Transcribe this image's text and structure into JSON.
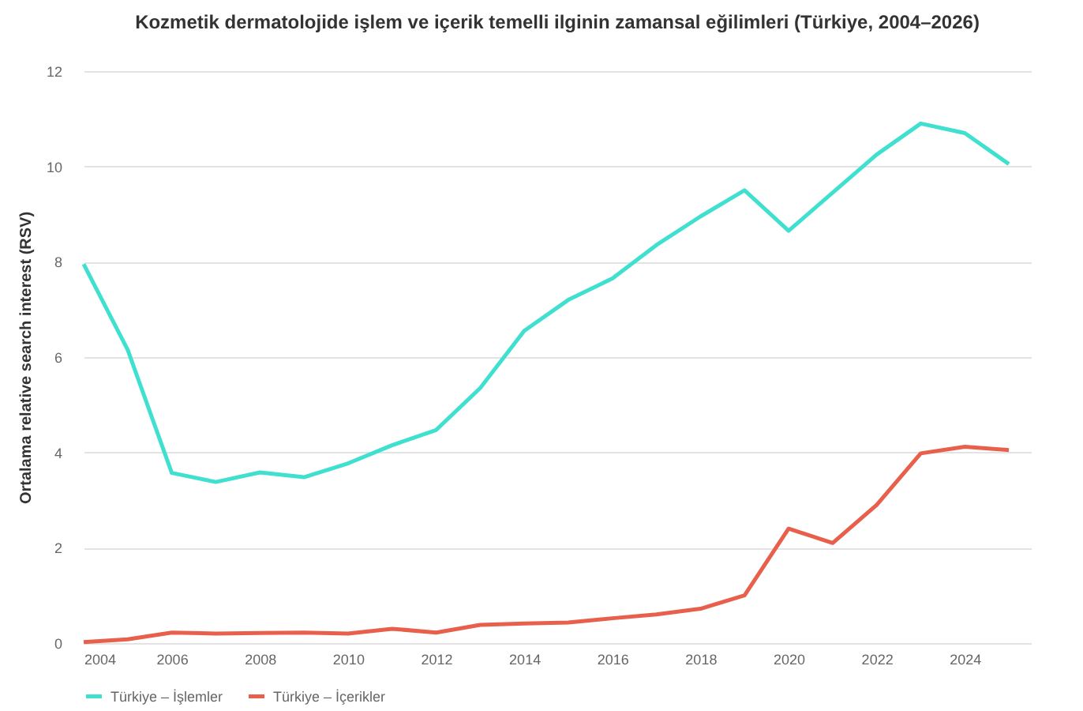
{
  "chart_data": {
    "type": "line",
    "title": "Kozmetik dermatolojide işlem ve içerik temelli ilginin zamansal eğilimleri (Türkiye, 2004–2026)",
    "ylabel": "Ortalama  relative search interest (RSV)",
    "x": [
      2004,
      2005,
      2006,
      2007,
      2008,
      2009,
      2010,
      2011,
      2012,
      2013,
      2014,
      2015,
      2016,
      2017,
      2018,
      2019,
      2020,
      2021,
      2022,
      2023,
      2024,
      2025
    ],
    "series": [
      {
        "name": "Türkiye – İşlemler",
        "color": "#40e0d0",
        "values": [
          7.95,
          6.15,
          3.57,
          3.38,
          3.58,
          3.48,
          3.77,
          4.15,
          4.47,
          5.35,
          6.55,
          7.2,
          7.65,
          8.35,
          8.95,
          9.5,
          8.65,
          9.45,
          10.25,
          10.9,
          10.7,
          10.05
        ]
      },
      {
        "name": "Türkiye – İçerikler",
        "color": "#e8604c",
        "values": [
          0.02,
          0.08,
          0.22,
          0.2,
          0.21,
          0.22,
          0.2,
          0.3,
          0.22,
          0.38,
          0.41,
          0.43,
          0.52,
          0.6,
          0.72,
          1.0,
          2.4,
          2.1,
          2.9,
          3.98,
          4.12,
          4.05
        ]
      }
    ],
    "xlim": [
      2004,
      2025.5
    ],
    "xticks": [
      2004,
      2006,
      2008,
      2010,
      2012,
      2014,
      2016,
      2018,
      2020,
      2022,
      2024
    ],
    "ylim": [
      0,
      12
    ],
    "yticks": [
      0,
      2,
      4,
      6,
      8,
      10,
      12
    ],
    "grid": "y",
    "legend": "bottom",
    "marker": "none",
    "line_style": "solid"
  }
}
